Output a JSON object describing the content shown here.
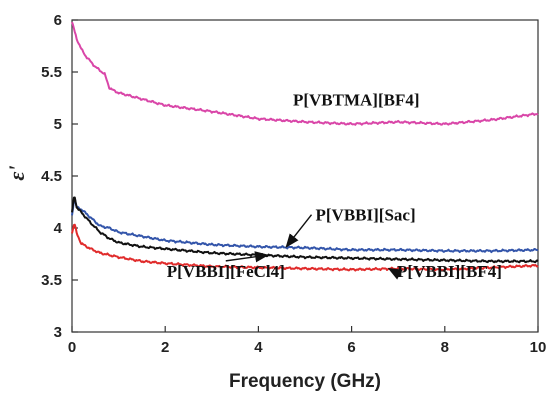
{
  "chart_data": {
    "type": "line",
    "title": "",
    "xlabel": "Frequency (GHz)",
    "ylabel": "ε'",
    "xlim": [
      0,
      10
    ],
    "ylim": [
      3,
      6
    ],
    "x_ticks": [
      "0",
      "2",
      "4",
      "6",
      "8",
      "10"
    ],
    "y_ticks": [
      "3",
      "3.5",
      "4",
      "4.5",
      "5",
      "5.5",
      "6"
    ],
    "grid": false,
    "series": [
      {
        "name": "P[VBTMA][BF4]",
        "color": "#d946a8",
        "x": [
          0.0,
          0.05,
          0.1,
          0.2,
          0.3,
          0.5,
          0.7,
          0.8,
          0.9,
          1.0,
          1.5,
          2.0,
          3.0,
          4.0,
          5.0,
          6.0,
          7.0,
          8.0,
          9.0,
          10.0
        ],
        "y": [
          5.98,
          5.9,
          5.82,
          5.72,
          5.65,
          5.55,
          5.48,
          5.35,
          5.32,
          5.3,
          5.24,
          5.18,
          5.12,
          5.05,
          5.02,
          5.0,
          5.02,
          5.0,
          5.04,
          5.1
        ]
      },
      {
        "name": "P[VBBI][Sac]",
        "color": "#3355aa",
        "x": [
          0.0,
          0.05,
          0.1,
          0.2,
          0.4,
          0.6,
          0.8,
          1.0,
          1.5,
          2.0,
          3.0,
          4.0,
          5.0,
          6.0,
          7.0,
          8.0,
          9.0,
          10.0
        ],
        "y": [
          4.12,
          4.3,
          4.2,
          4.18,
          4.1,
          4.02,
          4.0,
          3.96,
          3.92,
          3.88,
          3.84,
          3.82,
          3.81,
          3.79,
          3.79,
          3.78,
          3.78,
          3.79
        ]
      },
      {
        "name": "P[VBBI][FeCl4]",
        "color": "#111111",
        "x": [
          0.0,
          0.05,
          0.1,
          0.2,
          0.4,
          0.6,
          0.8,
          1.0,
          1.5,
          2.0,
          3.0,
          4.0,
          5.0,
          6.0,
          7.0,
          8.0,
          9.0,
          10.0
        ],
        "y": [
          4.15,
          4.32,
          4.2,
          4.15,
          4.05,
          3.96,
          3.9,
          3.86,
          3.82,
          3.8,
          3.76,
          3.74,
          3.72,
          3.71,
          3.7,
          3.69,
          3.68,
          3.68
        ]
      },
      {
        "name": "P[VBBI][BF4]",
        "color": "#e02b2b",
        "x": [
          0.0,
          0.05,
          0.1,
          0.2,
          0.4,
          0.6,
          0.8,
          1.0,
          1.5,
          2.0,
          3.0,
          4.0,
          5.0,
          6.0,
          7.0,
          8.0,
          9.0,
          10.0
        ],
        "y": [
          3.95,
          4.05,
          3.95,
          3.85,
          3.8,
          3.76,
          3.74,
          3.72,
          3.68,
          3.66,
          3.63,
          3.62,
          3.61,
          3.6,
          3.61,
          3.6,
          3.62,
          3.64
        ]
      }
    ],
    "annotations": [
      {
        "text": "P[VBTMA][BF4]",
        "x": 6.1,
        "y": 5.18,
        "anchor": "middle",
        "arrow": false
      },
      {
        "text": "P[VBBI][Sac]",
        "x": 6.3,
        "y": 4.07,
        "anchor": "middle",
        "arrow": true,
        "arrow_to": [
          4.6,
          3.82
        ]
      },
      {
        "text": "P[VBBI][FeCl4]",
        "x": 3.3,
        "y": 3.53,
        "anchor": "middle",
        "arrow": true,
        "arrow_to": [
          4.2,
          3.74
        ]
      },
      {
        "text": "P[VBBI][BF4]",
        "x": 8.1,
        "y": 3.53,
        "anchor": "middle",
        "arrow": true,
        "arrow_to": [
          6.8,
          3.61
        ]
      }
    ]
  }
}
